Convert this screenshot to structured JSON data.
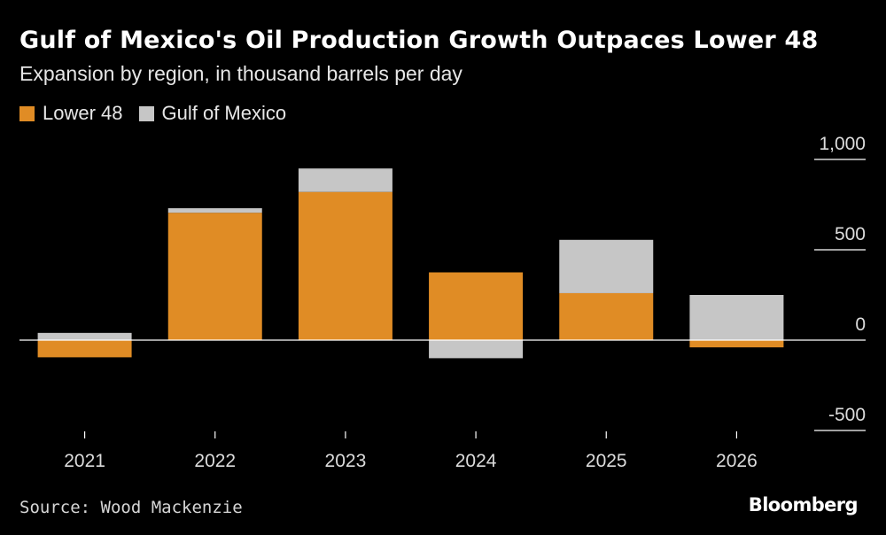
{
  "colors": {
    "background": "#000000",
    "lower48": "#e08c25",
    "gulf": "#c6c6c6",
    "axis": "#ffffff"
  },
  "brand": "Bloomberg",
  "source": "Source: Wood Mackenzie",
  "chart_data": {
    "type": "bar",
    "stacked": true,
    "title": "Gulf of Mexico's Oil Production Growth Outpaces Lower 48",
    "subtitle": "Expansion by region, in thousand barrels per day",
    "categories": [
      "2021",
      "2022",
      "2023",
      "2024",
      "2025",
      "2026"
    ],
    "series": [
      {
        "name": "Lower 48",
        "color": "#e08c25",
        "values": [
          -95,
          705,
          820,
          375,
          260,
          -40
        ]
      },
      {
        "name": "Gulf of Mexico",
        "color": "#c6c6c6",
        "values": [
          40,
          25,
          130,
          -100,
          295,
          250
        ]
      }
    ],
    "ylim": [
      -500,
      1000
    ],
    "yticks": [
      1000,
      500,
      0,
      -500
    ],
    "ytick_labels": [
      "1,000",
      "500",
      "0",
      "-500"
    ],
    "y_axis_position": "right",
    "legend": "top-left",
    "xlabel": "",
    "ylabel": ""
  }
}
